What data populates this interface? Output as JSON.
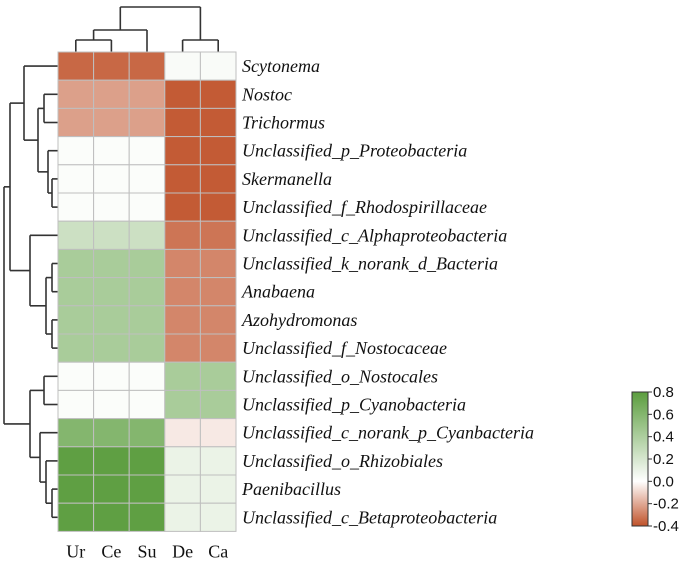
{
  "chart_data": {
    "type": "heatmap",
    "columns": [
      "Ur",
      "Ce",
      "Su",
      "De",
      "Ca"
    ],
    "rows": [
      "Scytonema",
      "Nostoc",
      "Trichormus",
      "Unclassified_p_Proteobacteria",
      "Skermanella",
      "Unclassified_f_Rhodospirillaceae",
      "Unclassified_c_Alphaproteobacteria",
      "Unclassified_k_norank_d_Bacteria",
      "Anabaena",
      "Azohydromonas",
      "Unclassified_f_Nostocaceae",
      "Unclassified_o_Nostocales",
      "Unclassified_p_Cyanobacteria",
      "Unclassified_c_norank_p_Cyanbacteria",
      "Unclassified_o_Rhizobiales",
      "Paenibacillus",
      "Unclassified_c_Betaproteobacteria"
    ],
    "values": [
      [
        -0.35,
        -0.35,
        -0.35,
        0.03,
        0.03
      ],
      [
        -0.22,
        -0.22,
        -0.22,
        -0.38,
        -0.38
      ],
      [
        -0.22,
        -0.22,
        -0.22,
        -0.38,
        -0.38
      ],
      [
        0.02,
        0.02,
        0.02,
        -0.38,
        -0.38
      ],
      [
        0.02,
        0.02,
        0.02,
        -0.38,
        -0.38
      ],
      [
        0.02,
        0.02,
        0.02,
        -0.38,
        -0.38
      ],
      [
        0.25,
        0.25,
        0.25,
        -0.32,
        -0.32
      ],
      [
        0.42,
        0.42,
        0.42,
        -0.28,
        -0.28
      ],
      [
        0.42,
        0.42,
        0.42,
        -0.28,
        -0.28
      ],
      [
        0.42,
        0.42,
        0.42,
        -0.28,
        -0.28
      ],
      [
        0.42,
        0.42,
        0.42,
        -0.28,
        -0.28
      ],
      [
        0.02,
        0.02,
        0.02,
        0.42,
        0.42
      ],
      [
        0.02,
        0.02,
        0.02,
        0.42,
        0.42
      ],
      [
        0.6,
        0.6,
        0.6,
        -0.05,
        -0.05
      ],
      [
        0.78,
        0.78,
        0.78,
        0.1,
        0.1
      ],
      [
        0.78,
        0.78,
        0.78,
        0.1,
        0.1
      ],
      [
        0.78,
        0.78,
        0.78,
        0.1,
        0.1
      ]
    ],
    "color_scale": {
      "min": -0.4,
      "max": 0.8,
      "low_color": "#c0522a",
      "mid_color": "#ffffff",
      "high_color": "#5b9d3e",
      "ticks": [
        "0.8",
        "0.6",
        "0.4",
        "0.2",
        "0.0",
        "-0.2",
        "-0.4"
      ],
      "tick_values": [
        0.8,
        0.6,
        0.4,
        0.2,
        0.0,
        -0.2,
        -0.4
      ]
    },
    "legend_position": "right",
    "row_dendrogram": "left",
    "column_dendrogram": "top"
  }
}
